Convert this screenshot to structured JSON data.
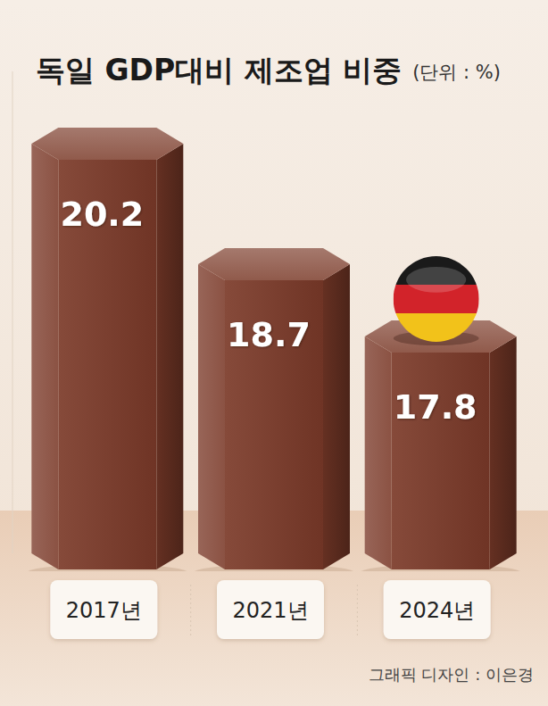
{
  "chart_data": {
    "type": "bar",
    "title": "독일 GDP대비 제조업 비중",
    "subtitle": "(단위 : %)",
    "categories": [
      "2017년",
      "2021년",
      "2024년"
    ],
    "values": [
      20.2,
      18.7,
      17.8
    ],
    "color": "#7b3a29",
    "ylim": [
      15.1,
      21.1
    ],
    "data_labels": true,
    "tick_labels": "x",
    "credit": "그래픽 디자인 : 이은경"
  }
}
